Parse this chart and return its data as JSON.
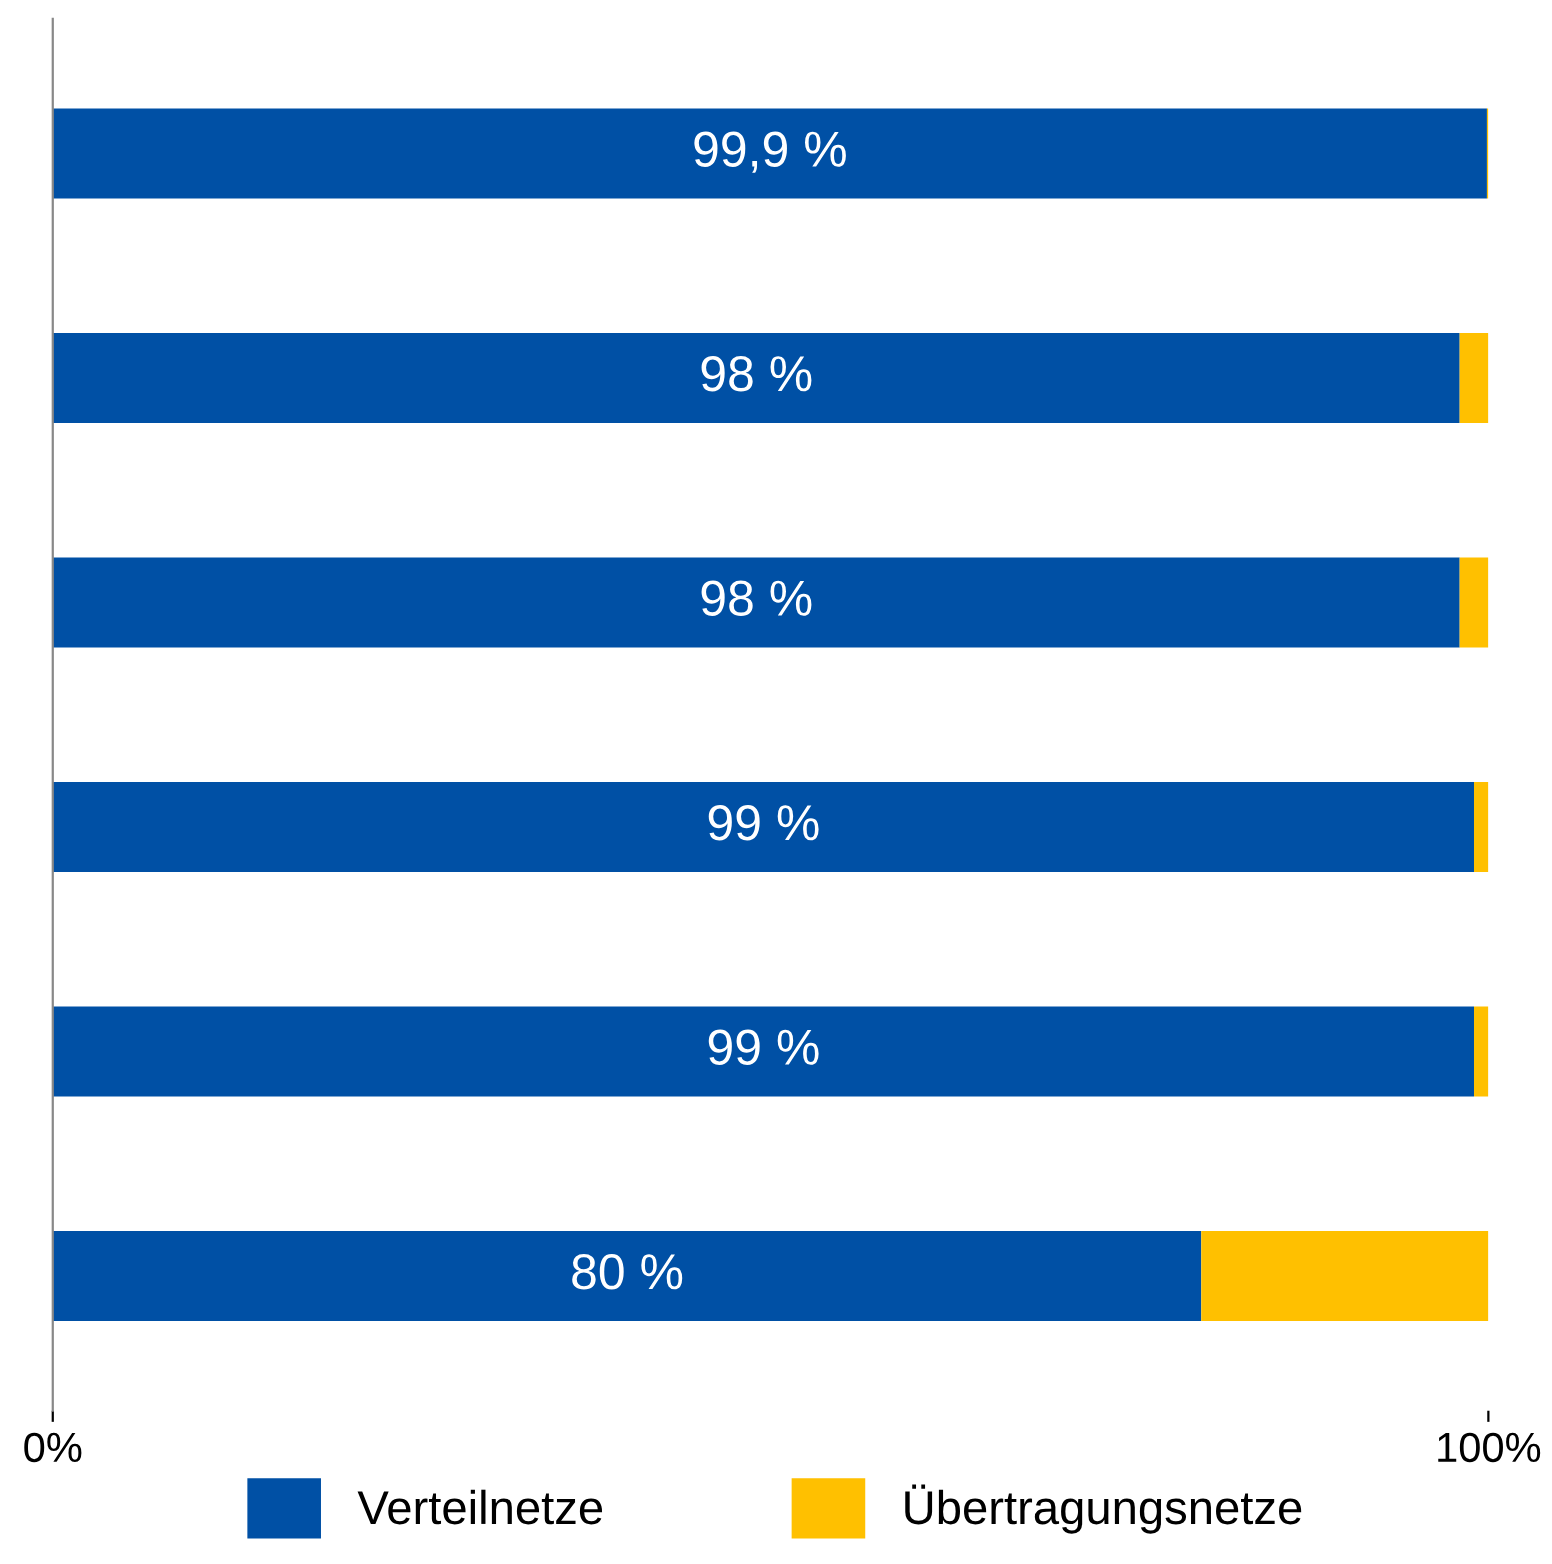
{
  "chart_data": {
    "type": "bar",
    "orientation": "horizontal",
    "stacked": true,
    "categories": [
      null,
      null,
      null,
      null,
      null,
      null
    ],
    "series": [
      {
        "name": "Verteilnetze",
        "color": "#0050a5",
        "values": [
          99.9,
          98,
          98,
          99,
          99,
          80
        ],
        "value_labels": [
          "99,9 %",
          "98 %",
          "98 %",
          "99 %",
          "99 %",
          "80 %"
        ]
      },
      {
        "name": "Übertragungsnetze",
        "color": "#ffc000",
        "values": [
          0.1,
          2,
          2,
          1,
          1,
          20
        ]
      }
    ],
    "xlim": [
      0,
      100
    ],
    "xticks": [
      {
        "value": 0,
        "label": "0%"
      },
      {
        "value": 100,
        "label": "100%"
      }
    ],
    "grid": false,
    "legend": "bottom"
  }
}
